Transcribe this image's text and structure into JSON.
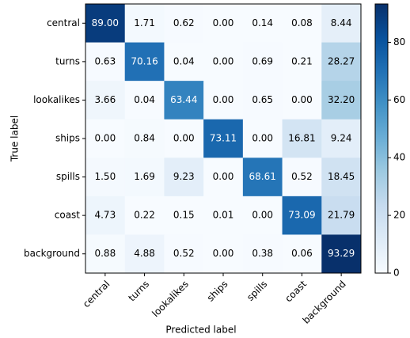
{
  "chart_data": {
    "type": "heatmap",
    "xlabel": "Predicted label",
    "ylabel": "True label",
    "x_categories": [
      "central",
      "turns",
      "lookalikes",
      "ships",
      "spills",
      "coast",
      "background"
    ],
    "y_categories": [
      "central",
      "turns",
      "lookalikes",
      "ships",
      "spills",
      "coast",
      "background"
    ],
    "values": [
      [
        89.0,
        1.71,
        0.62,
        0.0,
        0.14,
        0.08,
        8.44
      ],
      [
        0.63,
        70.16,
        0.04,
        0.0,
        0.69,
        0.21,
        28.27
      ],
      [
        3.66,
        0.04,
        63.44,
        0.0,
        0.65,
        0.0,
        32.2
      ],
      [
        0.0,
        0.84,
        0.0,
        73.11,
        0.0,
        16.81,
        9.24
      ],
      [
        1.5,
        1.69,
        9.23,
        0.0,
        68.61,
        0.52,
        18.45
      ],
      [
        4.73,
        0.22,
        0.15,
        0.01,
        0.0,
        73.09,
        21.79
      ],
      [
        0.88,
        4.88,
        0.52,
        0.0,
        0.38,
        0.06,
        93.29
      ]
    ],
    "value_labels": [
      [
        "89.00",
        "1.71",
        "0.62",
        "0.00",
        "0.14",
        "0.08",
        "8.44"
      ],
      [
        "0.63",
        "70.16",
        "0.04",
        "0.00",
        "0.69",
        "0.21",
        "28.27"
      ],
      [
        "3.66",
        "0.04",
        "63.44",
        "0.00",
        "0.65",
        "0.00",
        "32.20"
      ],
      [
        "0.00",
        "0.84",
        "0.00",
        "73.11",
        "0.00",
        "16.81",
        "9.24"
      ],
      [
        "1.50",
        "1.69",
        "9.23",
        "0.00",
        "68.61",
        "0.52",
        "18.45"
      ],
      [
        "4.73",
        "0.22",
        "0.15",
        "0.01",
        "0.00",
        "73.09",
        "21.79"
      ],
      [
        "0.88",
        "4.88",
        "0.52",
        "0.00",
        "0.38",
        "0.06",
        "93.29"
      ]
    ],
    "colormap": "Blues",
    "clim": [
      0,
      93.29
    ],
    "cticks": [
      0,
      20,
      40,
      60,
      80
    ]
  }
}
